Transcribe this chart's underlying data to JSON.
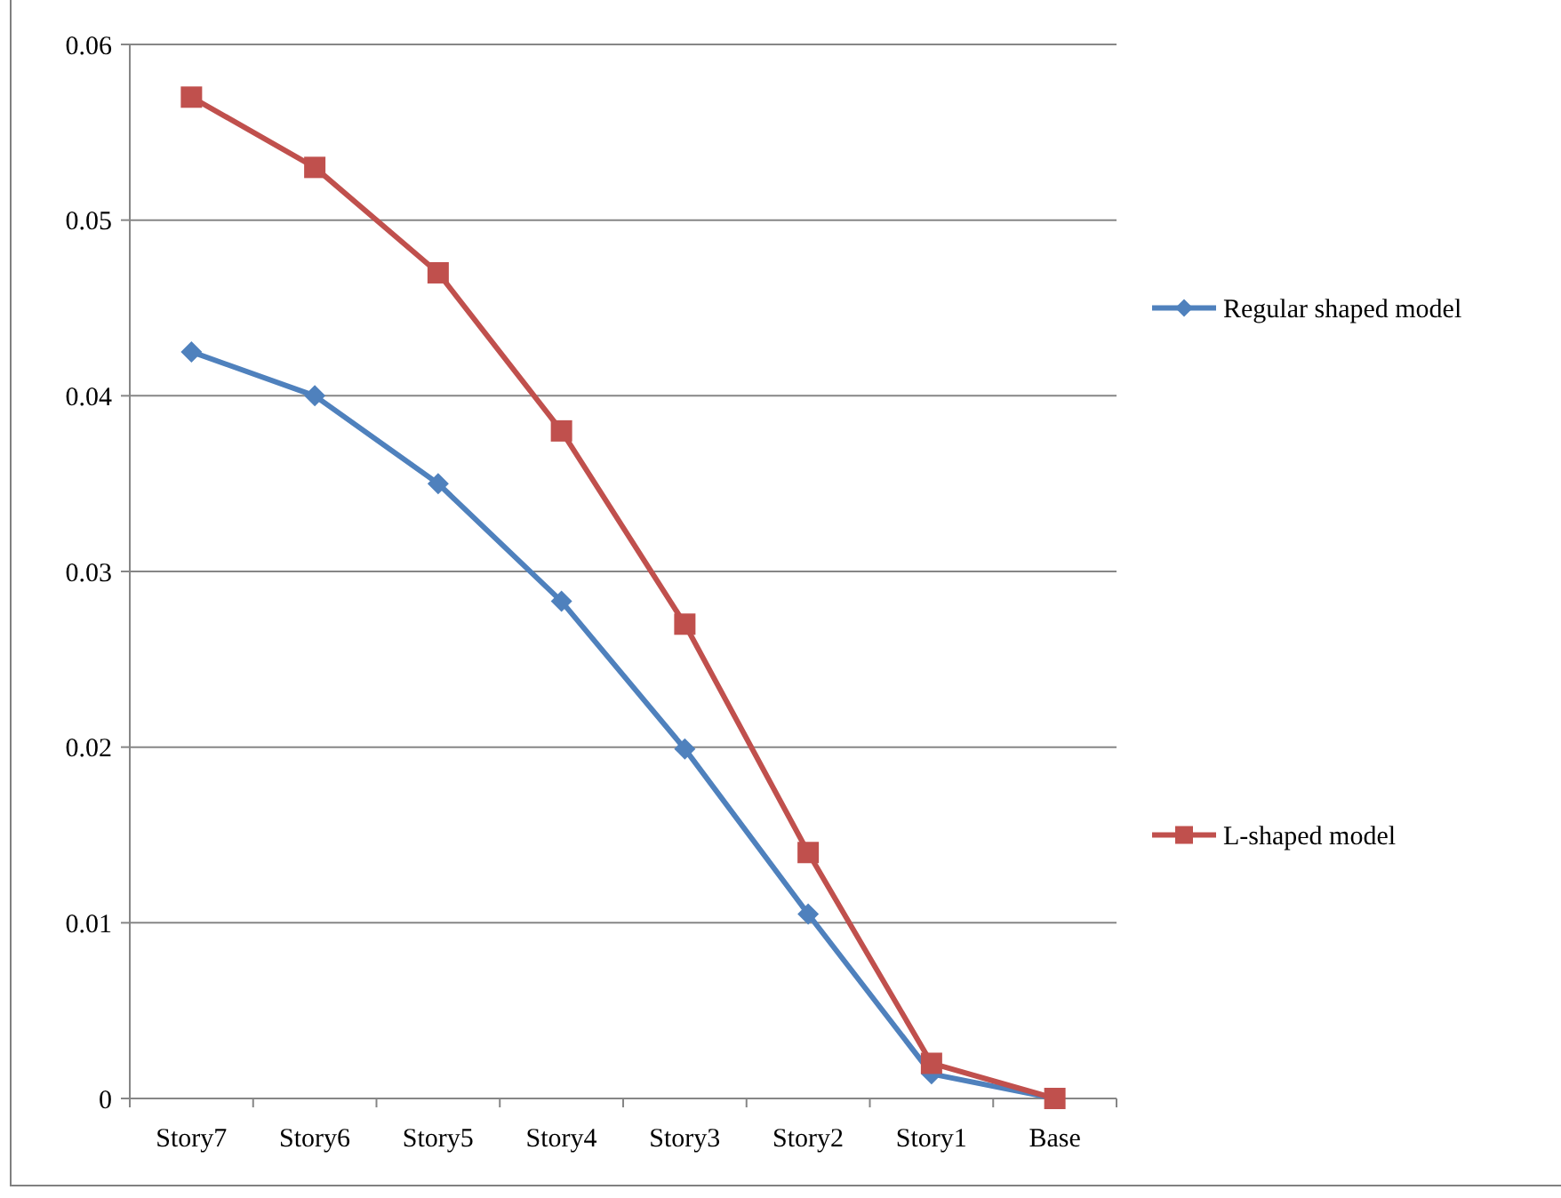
{
  "chart_data": {
    "type": "line",
    "categories": [
      "Story7",
      "Story6",
      "Story5",
      "Story4",
      "Story3",
      "Story2",
      "Story1",
      "Base"
    ],
    "series": [
      {
        "name": "Regular shaped model",
        "color": "#4f81bd",
        "marker": "diamond",
        "values": [
          0.0425,
          0.04,
          0.035,
          0.0283,
          0.0199,
          0.0105,
          0.0014,
          0
        ]
      },
      {
        "name": "L-shaped model",
        "color": "#c0504d",
        "marker": "square",
        "values": [
          0.057,
          0.053,
          0.047,
          0.038,
          0.027,
          0.014,
          0.002,
          0
        ]
      }
    ],
    "ylim": [
      0,
      0.06
    ],
    "yticks": [
      0,
      0.01,
      0.02,
      0.03,
      0.04,
      0.05,
      0.06
    ],
    "grid": "y",
    "legend": "right"
  }
}
